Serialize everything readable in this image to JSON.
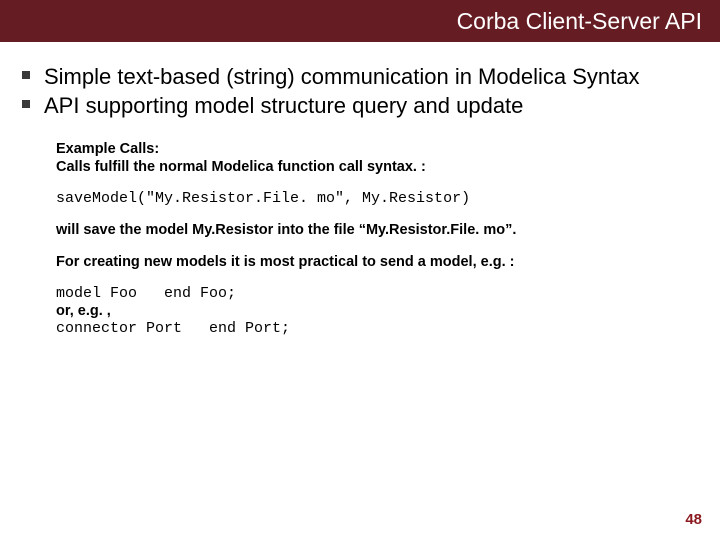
{
  "header": {
    "title": "Corba Client-Server API",
    "background_color": "#651c22",
    "title_color": "#ffffff",
    "title_fontsize": 23
  },
  "bullets": [
    "Simple text-based (string) communication in Modelica Syntax",
    "API supporting model structure query and update"
  ],
  "body": {
    "example_heading": "Example Calls:",
    "example_sub": "Calls fulfill the normal Modelica function call syntax. :",
    "code1": "saveModel(\"My.Resistor.File. mo\", My.Resistor)",
    "explain1": "will save the model My.Resistor into the file “My.Resistor.File. mo”.",
    "explain2": "For creating new models it is most practical to send a model, e.g. :",
    "code2": "model Foo   end Foo;",
    "or_line": "or, e.g. ,",
    "code3": "connector Port   end Port;"
  },
  "page_number": "48",
  "colors": {
    "bullet_marker": "#3a3a3a",
    "page_number": "#8a1a1f",
    "text": "#000000"
  }
}
